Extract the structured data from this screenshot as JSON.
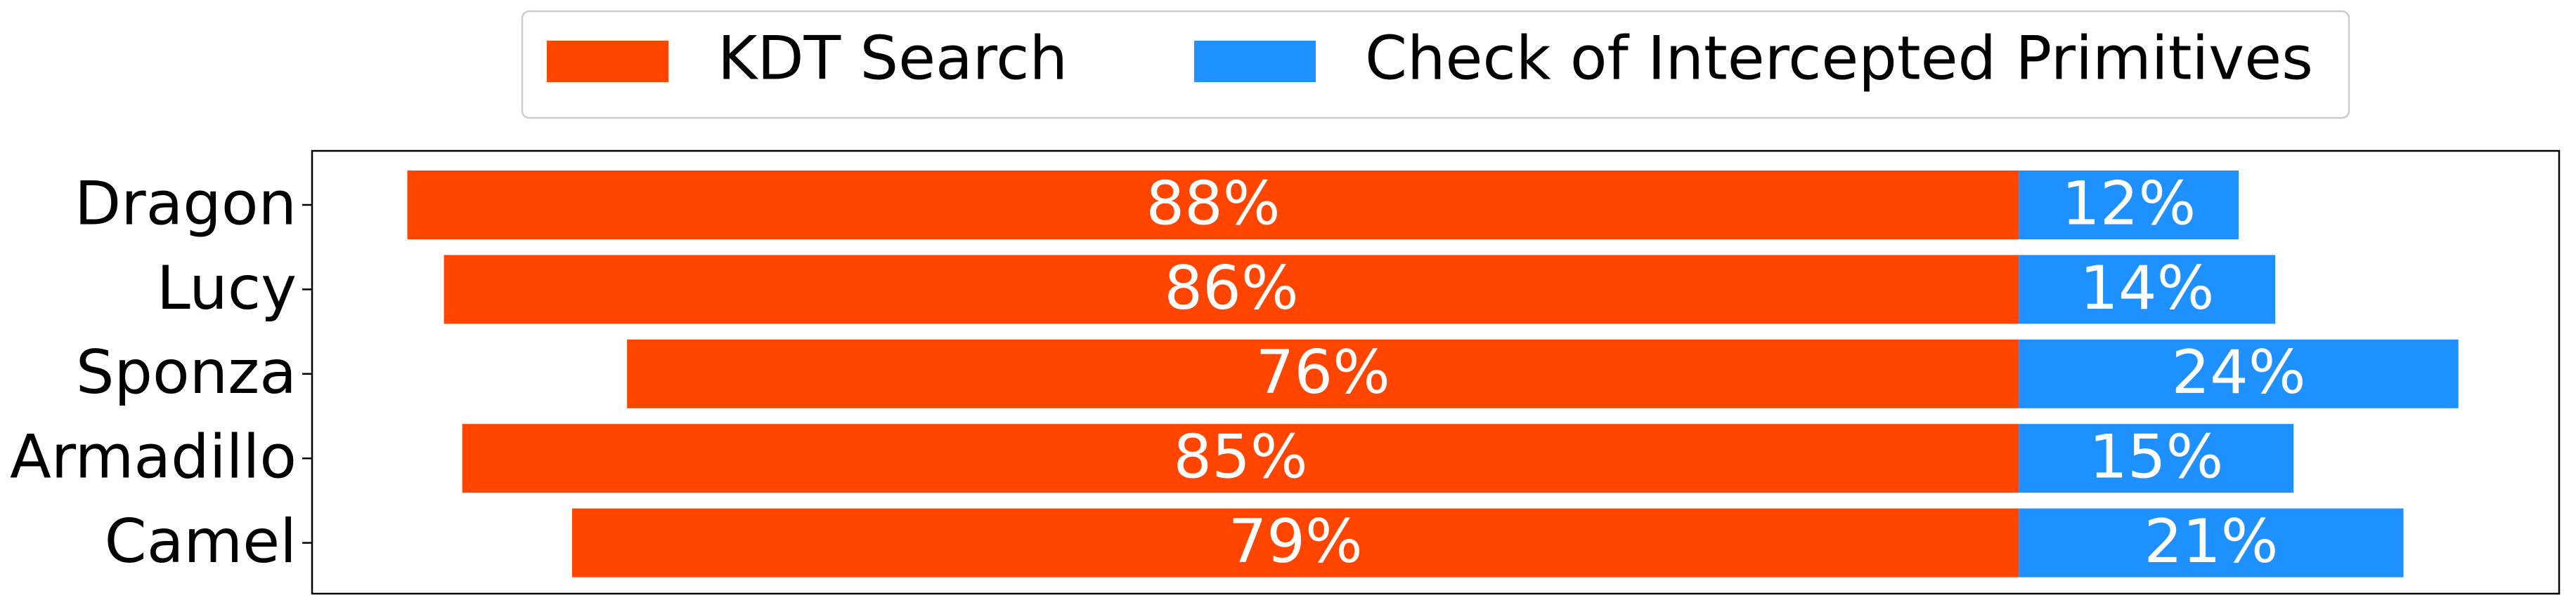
{
  "chart_data": {
    "type": "bar",
    "orientation": "horizontal",
    "layout": "diverging",
    "categories": [
      "Dragon",
      "Lucy",
      "Sponza",
      "Armadillo",
      "Camel"
    ],
    "series": [
      {
        "name": "KDT Search",
        "color": "#ff4500",
        "values": [
          88,
          86,
          76,
          85,
          79
        ],
        "value_labels": [
          "88%",
          "86%",
          "76%",
          "85%",
          "79%"
        ]
      },
      {
        "name": "Check of Intercepted Primitives",
        "color": "#1e90ff",
        "values": [
          12,
          14,
          24,
          15,
          21
        ],
        "value_labels": [
          "12%",
          "14%",
          "24%",
          "15%",
          "21%"
        ]
      }
    ],
    "xlim": [
      -93.2,
      29.5
    ],
    "legend": "upper center"
  }
}
